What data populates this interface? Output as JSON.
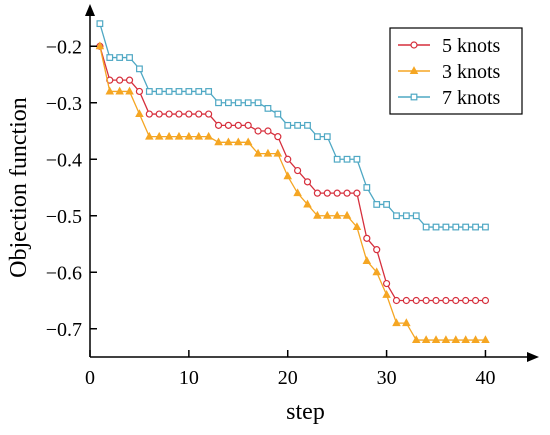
{
  "chart_data": {
    "type": "line",
    "xlabel": "step",
    "ylabel": "Objection function",
    "xlim": [
      0,
      44
    ],
    "ylim": [
      -0.75,
      -0.15
    ],
    "xticks": [
      0,
      10,
      20,
      30,
      40
    ],
    "xtick_labels": [
      "0",
      "10",
      "20",
      "30",
      "40"
    ],
    "yticks": [
      -0.2,
      -0.3,
      -0.4,
      -0.5,
      -0.6,
      -0.7
    ],
    "ytick_labels": [
      "−0.2",
      "−0.3",
      "−0.4",
      "−0.5",
      "−0.6",
      "−0.7"
    ],
    "grid": false,
    "legend_position": "top-right",
    "x": [
      1,
      2,
      3,
      4,
      5,
      6,
      7,
      8,
      9,
      10,
      11,
      12,
      13,
      14,
      15,
      16,
      17,
      18,
      19,
      20,
      21,
      22,
      23,
      24,
      25,
      26,
      27,
      28,
      29,
      30,
      31,
      32,
      33,
      34,
      35,
      36,
      37,
      38,
      39,
      40
    ],
    "series": [
      {
        "name": "5 knots",
        "color": "#d62f3c",
        "marker": "circle",
        "values": [
          -0.2,
          -0.26,
          -0.26,
          -0.26,
          -0.28,
          -0.32,
          -0.32,
          -0.32,
          -0.32,
          -0.32,
          -0.32,
          -0.32,
          -0.34,
          -0.34,
          -0.34,
          -0.34,
          -0.35,
          -0.35,
          -0.36,
          -0.4,
          -0.42,
          -0.44,
          -0.46,
          -0.46,
          -0.46,
          -0.46,
          -0.46,
          -0.54,
          -0.56,
          -0.62,
          -0.65,
          -0.65,
          -0.65,
          -0.65,
          -0.65,
          -0.65,
          -0.65,
          -0.65,
          -0.65,
          -0.65
        ]
      },
      {
        "name": "3 knots",
        "color": "#f5a623",
        "marker": "triangle",
        "values": [
          -0.2,
          -0.28,
          -0.28,
          -0.28,
          -0.32,
          -0.36,
          -0.36,
          -0.36,
          -0.36,
          -0.36,
          -0.36,
          -0.36,
          -0.37,
          -0.37,
          -0.37,
          -0.37,
          -0.39,
          -0.39,
          -0.39,
          -0.43,
          -0.46,
          -0.48,
          -0.5,
          -0.5,
          -0.5,
          -0.5,
          -0.52,
          -0.58,
          -0.6,
          -0.64,
          -0.69,
          -0.69,
          -0.72,
          -0.72,
          -0.72,
          -0.72,
          -0.72,
          -0.72,
          -0.72,
          -0.72
        ]
      },
      {
        "name": "7 knots",
        "color": "#4fa8c4",
        "marker": "square",
        "values": [
          -0.16,
          -0.22,
          -0.22,
          -0.22,
          -0.24,
          -0.28,
          -0.28,
          -0.28,
          -0.28,
          -0.28,
          -0.28,
          -0.28,
          -0.3,
          -0.3,
          -0.3,
          -0.3,
          -0.3,
          -0.31,
          -0.32,
          -0.34,
          -0.34,
          -0.34,
          -0.36,
          -0.36,
          -0.4,
          -0.4,
          -0.4,
          -0.45,
          -0.48,
          -0.48,
          -0.5,
          -0.5,
          -0.5,
          -0.52,
          -0.52,
          -0.52,
          -0.52,
          -0.52,
          -0.52,
          -0.52
        ]
      }
    ]
  }
}
